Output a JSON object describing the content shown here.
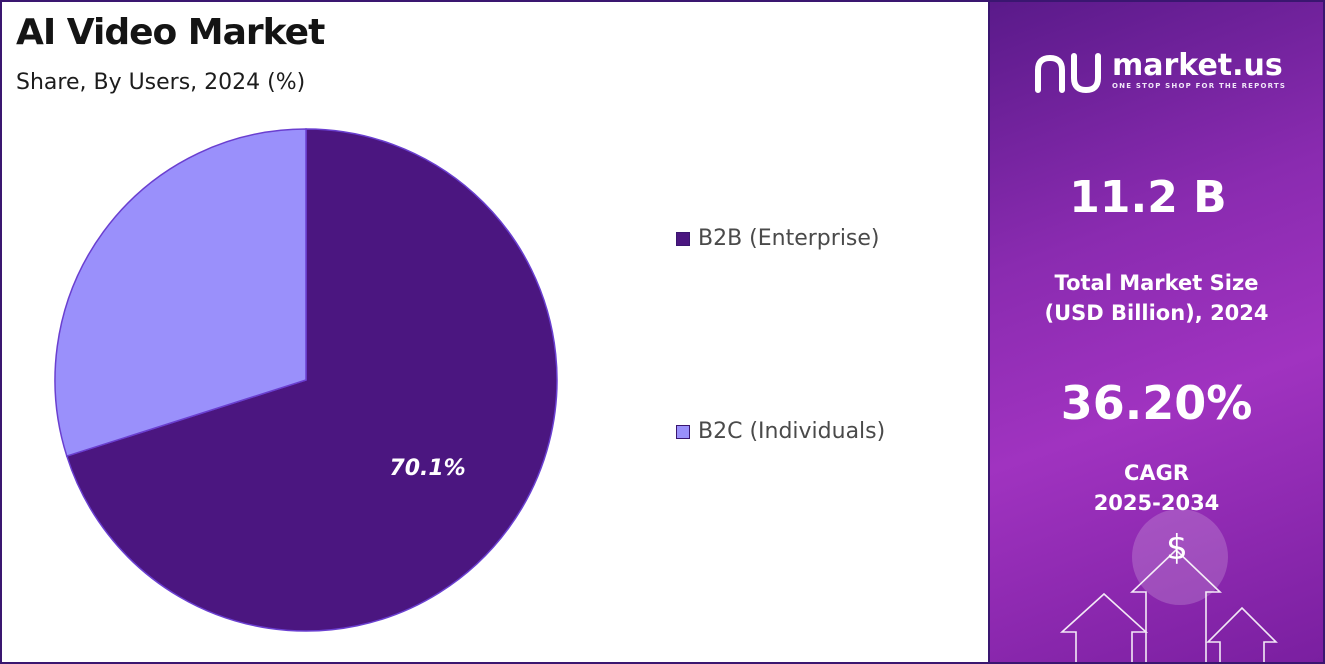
{
  "header": {
    "title": "AI Video Market",
    "subtitle": "Share, By Users, 2024 (%)"
  },
  "chart_data": {
    "type": "pie",
    "categories": [
      "B2B (Enterprise)",
      "B2C (Individuals)"
    ],
    "values": [
      70.1,
      29.9
    ],
    "data_labels": [
      "70.1%",
      ""
    ],
    "colors": [
      "#4b1680",
      "#9a90fb"
    ],
    "legend_position": "right"
  },
  "legend": {
    "items": [
      {
        "label": "B2B (Enterprise)",
        "color": "#4b1680"
      },
      {
        "label": "B2C (Individuals)",
        "color": "#9a90fb"
      }
    ]
  },
  "sidebar": {
    "logo_name": "market.us",
    "logo_tagline": "ONE STOP SHOP FOR THE REPORTS",
    "market_size_value": "11.2 B",
    "market_size_label_line1": "Total Market Size",
    "market_size_label_line2": "(USD Billion), 2024",
    "cagr_value": "36.20%",
    "cagr_label_line1": "CAGR",
    "cagr_label_line2": "2025-2034",
    "currency_symbol": "$",
    "logo_icon": "market-us-logo-icon",
    "decor_icon": "growth-arrows-icon"
  }
}
